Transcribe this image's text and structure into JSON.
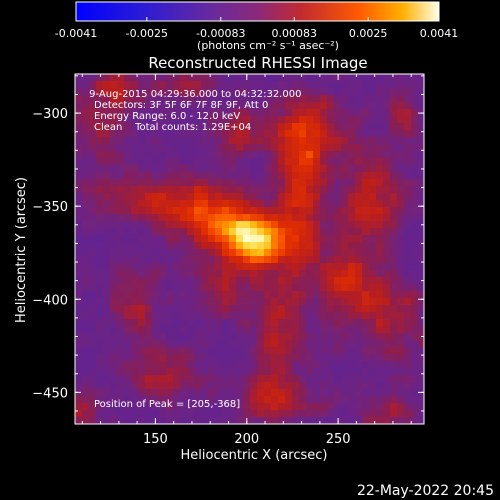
{
  "colorbar": {
    "min": -0.0041,
    "max": 0.0041,
    "tick_labels": [
      "-0.0041",
      "-0.0025",
      "-0.00083",
      "0.00083",
      "0.0025",
      "0.0041"
    ],
    "tick_values": [
      -0.0041,
      -0.0025,
      -0.00083,
      0.00083,
      0.0025,
      0.0041
    ],
    "units": "(photons cm⁻² s⁻¹ asec⁻²)"
  },
  "chart_data": {
    "type": "heatmap",
    "title": "Reconstructed RHESSI Image",
    "xlabel": "Heliocentric X (arcsec)",
    "ylabel": "Heliocentric Y (arcsec)",
    "xlim": [
      106,
      297
    ],
    "ylim": [
      -467,
      -279
    ],
    "x_ticks": [
      150,
      200,
      250
    ],
    "y_ticks": [
      -300,
      -350,
      -400,
      -450
    ],
    "info_lines": [
      " 9-Aug-2015 04:29:36.000 to 04:32:32.000",
      "Detectors: 3F 5F 6F 7F 8F 9F, Att 0",
      "Energy Range: 6.0 - 12.0 keV",
      "Clean    Total counts: 1.29E+04"
    ],
    "peak_label": "Position of Peak = [205,-368]",
    "peak": [
      205,
      -368
    ],
    "sources": [
      {
        "x": 205,
        "y": -368,
        "sx": 12,
        "sy": 10,
        "amp": 1.0
      },
      {
        "x": 182,
        "y": -358,
        "sx": 15,
        "sy": 12,
        "amp": 0.55
      },
      {
        "x": 230,
        "y": -345,
        "sx": 9,
        "sy": 30,
        "amp": 0.45
      },
      {
        "x": 235,
        "y": -310,
        "sx": 14,
        "sy": 14,
        "amp": 0.42
      },
      {
        "x": 195,
        "y": -310,
        "sx": 11,
        "sy": 9,
        "amp": 0.35
      },
      {
        "x": 150,
        "y": -345,
        "sx": 22,
        "sy": 9,
        "amp": 0.42
      },
      {
        "x": 268,
        "y": -345,
        "sx": 12,
        "sy": 18,
        "amp": 0.4
      },
      {
        "x": 255,
        "y": -390,
        "sx": 12,
        "sy": 15,
        "amp": 0.42
      },
      {
        "x": 280,
        "y": -410,
        "sx": 12,
        "sy": 16,
        "amp": 0.35
      },
      {
        "x": 215,
        "y": -420,
        "sx": 10,
        "sy": 22,
        "amp": 0.4
      },
      {
        "x": 185,
        "y": -395,
        "sx": 10,
        "sy": 10,
        "amp": 0.3
      },
      {
        "x": 140,
        "y": -400,
        "sx": 9,
        "sy": 16,
        "amp": 0.3
      },
      {
        "x": 155,
        "y": -440,
        "sx": 14,
        "sy": 10,
        "amp": 0.32
      },
      {
        "x": 215,
        "y": -455,
        "sx": 16,
        "sy": 8,
        "amp": 0.38
      },
      {
        "x": 120,
        "y": -310,
        "sx": 12,
        "sy": 14,
        "amp": 0.3
      },
      {
        "x": 285,
        "y": -300,
        "sx": 8,
        "sy": 10,
        "amp": 0.28
      },
      {
        "x": 130,
        "y": -285,
        "sx": 12,
        "sy": 7,
        "amp": 0.3
      },
      {
        "x": 165,
        "y": -285,
        "sx": 12,
        "sy": 7,
        "amp": 0.25
      },
      {
        "x": 275,
        "y": -460,
        "sx": 12,
        "sy": 8,
        "amp": 0.28
      },
      {
        "x": 110,
        "y": -460,
        "sx": 8,
        "sy": 8,
        "amp": 0.3
      }
    ]
  },
  "footer": {
    "date": "22-May-2022 20:45"
  }
}
